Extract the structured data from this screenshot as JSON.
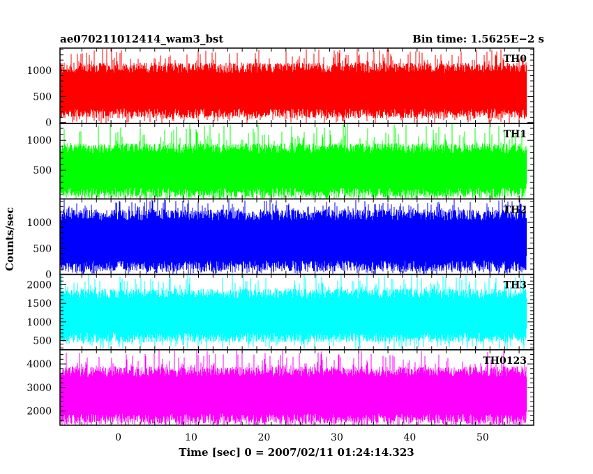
{
  "title_left": "ae070211012414_wam3_bst",
  "title_right": "Bin time: 1.5625E−2 s",
  "xlabel": "Time [sec] 0 = 2007/02/11 01:24:14.323",
  "ylabel": "Counts/sec",
  "colors": {
    "TH0": "#ff0000",
    "TH1": "#00ff00",
    "TH2": "#0000ff",
    "TH3": "#00ffff",
    "TH0123": "#ff00ff"
  },
  "chart_data": {
    "type": "line",
    "xlim": [
      -8,
      57
    ],
    "x_ticks": [
      0,
      10,
      20,
      30,
      40,
      50
    ],
    "data_x_range": [
      -7.9,
      56
    ],
    "bin_time_s": 0.015625,
    "panels": [
      {
        "name": "TH0",
        "ylim": [
          -20,
          1430
        ],
        "yticks": [
          0,
          500,
          1000
        ],
        "band_low": 80,
        "band_high": 1150,
        "spike_max": 1430
      },
      {
        "name": "TH1",
        "ylim": [
          20,
          1280
        ],
        "yticks": [
          500,
          1000
        ],
        "band_low": 40,
        "band_high": 950,
        "spike_max": 1280
      },
      {
        "name": "TH2",
        "ylim": [
          0,
          1450
        ],
        "yticks": [
          0,
          500,
          1000
        ],
        "band_low": 50,
        "band_high": 1250,
        "spike_max": 1450
      },
      {
        "name": "TH3",
        "ylim": [
          250,
          2280
        ],
        "yticks": [
          500,
          1000,
          1500,
          2000
        ],
        "band_low": 450,
        "band_high": 1900,
        "spike_max": 2280
      },
      {
        "name": "TH0123",
        "ylim": [
          1400,
          4600
        ],
        "yticks": [
          2000,
          3000,
          4000
        ],
        "band_low": 1450,
        "band_high": 3900,
        "spike_max": 4600
      }
    ]
  }
}
